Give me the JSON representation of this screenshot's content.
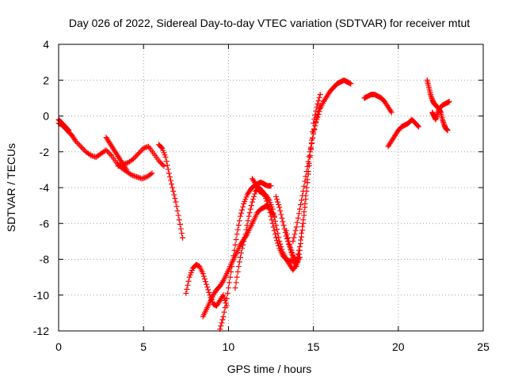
{
  "chart_data": {
    "type": "scatter",
    "title": "Day 026 of 2022, Sidereal Day-to-day VTEC variation (SDTVAR) for receiver mtut",
    "xlabel": "GPS time / hours",
    "ylabel": "SDTVAR / TECUs",
    "xlim": [
      0,
      25
    ],
    "ylim": [
      -12,
      4
    ],
    "xticks": [
      "0",
      "5",
      "10",
      "15",
      "20",
      "25"
    ],
    "yticks": [
      "-12",
      "-10",
      "-8",
      "-6",
      "-4",
      "-2",
      "0",
      "2",
      "4"
    ],
    "grid": true,
    "marker": "plus",
    "color": "#ff0000",
    "series": [
      {
        "x": [
          0.0,
          0.2,
          0.4,
          0.6,
          0.8,
          1.0,
          1.3,
          1.6,
          1.9,
          2.2,
          2.5,
          2.8,
          3.1,
          3.4,
          3.7,
          4.0,
          4.3,
          4.6,
          4.9,
          5.2,
          5.5
        ],
        "y": [
          -0.4,
          -0.5,
          -0.7,
          -0.9,
          -1.1,
          -1.4,
          -1.7,
          -2.0,
          -2.2,
          -2.3,
          -2.1,
          -1.9,
          -2.2,
          -2.6,
          -2.9,
          -3.1,
          -3.3,
          -3.4,
          -3.5,
          -3.4,
          -3.2
        ]
      },
      {
        "x": [
          0.0,
          0.2,
          0.4,
          0.6
        ],
        "y": [
          -0.2,
          -0.4,
          -0.6,
          -0.8
        ]
      },
      {
        "x": [
          2.8,
          3.0,
          3.2,
          3.4,
          3.6,
          3.8,
          4.0
        ],
        "y": [
          -1.2,
          -1.5,
          -1.8,
          -2.1,
          -2.4,
          -2.7,
          -3.0
        ]
      },
      {
        "x": [
          3.5,
          3.8,
          4.1,
          4.4,
          4.7,
          5.0,
          5.3,
          5.6,
          5.9,
          6.2
        ],
        "y": [
          -2.8,
          -2.7,
          -2.6,
          -2.4,
          -2.1,
          -1.8,
          -1.7,
          -2.1,
          -2.5,
          -2.8
        ]
      },
      {
        "x": [
          5.9,
          6.1,
          6.3,
          6.5,
          6.7,
          6.9,
          7.1,
          7.3
        ],
        "y": [
          -1.6,
          -1.8,
          -2.3,
          -3.2,
          -4.0,
          -4.8,
          -5.8,
          -6.8
        ]
      },
      {
        "x": [
          7.5,
          7.7,
          7.9,
          8.1,
          8.3,
          8.5,
          8.7,
          8.9,
          9.1,
          9.3,
          9.5,
          9.7,
          9.9
        ],
        "y": [
          -9.9,
          -9.0,
          -8.5,
          -8.3,
          -8.4,
          -8.8,
          -9.4,
          -10.0,
          -10.5,
          -10.6,
          -10.3,
          -10.0,
          -10.6
        ]
      },
      {
        "x": [
          8.5,
          8.7,
          8.9,
          9.1,
          9.3,
          9.5,
          9.7,
          9.9,
          10.1,
          10.3,
          10.5,
          10.7,
          10.9,
          11.1,
          11.3,
          11.5,
          11.7,
          11.9,
          12.1,
          12.3,
          12.5,
          12.7
        ],
        "y": [
          -11.2,
          -10.8,
          -10.4,
          -10.0,
          -9.7,
          -9.5,
          -9.2,
          -8.8,
          -8.4,
          -8.0,
          -7.6,
          -7.2,
          -6.9,
          -6.6,
          -6.2,
          -5.8,
          -5.4,
          -5.2,
          -5.1,
          -5.0,
          -5.3,
          -5.6
        ]
      },
      {
        "x": [
          9.5,
          9.7,
          9.9,
          10.1,
          10.3,
          10.5,
          10.7,
          10.9,
          11.1,
          11.3,
          11.5,
          11.7,
          11.9,
          12.1,
          12.3,
          12.5
        ],
        "y": [
          -11.9,
          -11.2,
          -10.2,
          -9.0,
          -7.8,
          -6.6,
          -5.6,
          -4.9,
          -4.4,
          -4.1,
          -3.9,
          -3.8,
          -3.7,
          -3.8,
          -3.9,
          -3.9
        ]
      },
      {
        "x": [
          10.4,
          10.6,
          10.8,
          11.0,
          11.2,
          11.4,
          11.6,
          11.8,
          12.0,
          12.2,
          12.4,
          12.6,
          12.8,
          13.0,
          13.2,
          13.4,
          13.6,
          13.8,
          14.0
        ],
        "y": [
          -9.6,
          -8.4,
          -7.4,
          -6.6,
          -5.6,
          -4.8,
          -4.2,
          -4.0,
          -4.2,
          -4.6,
          -5.2,
          -6.0,
          -6.8,
          -7.4,
          -7.8,
          -8.0,
          -8.1,
          -8.1,
          -8.0
        ]
      },
      {
        "x": [
          11.4,
          11.6,
          11.8,
          12.0,
          12.2,
          12.4,
          12.6,
          12.8,
          13.0,
          13.2,
          13.4,
          13.6,
          13.8,
          14.0,
          14.2
        ],
        "y": [
          -3.5,
          -3.8,
          -4.2,
          -4.3,
          -4.4,
          -4.7,
          -5.2,
          -6.1,
          -7.0,
          -7.6,
          -8.0,
          -8.3,
          -8.6,
          -8.3,
          -7.9
        ]
      },
      {
        "x": [
          12.8,
          13.0,
          13.2,
          13.4,
          13.6,
          13.8,
          14.0,
          14.2,
          14.4,
          14.6,
          14.8,
          15.0,
          15.2,
          15.4
        ],
        "y": [
          -4.5,
          -5.1,
          -5.9,
          -6.7,
          -7.3,
          -7.9,
          -8.4,
          -7.5,
          -6.0,
          -4.2,
          -2.3,
          -0.4,
          0.5,
          1.2
        ]
      },
      {
        "x": [
          13.4,
          13.6,
          13.8,
          14.0,
          14.2,
          14.4,
          14.6,
          14.8,
          15.0,
          15.2,
          15.4,
          15.6,
          15.8,
          16.0,
          16.2,
          16.4,
          16.6,
          16.8,
          17.0,
          17.2
        ],
        "y": [
          -6.4,
          -7.2,
          -7.8,
          -8.1,
          -7.3,
          -5.8,
          -4.0,
          -2.2,
          -0.9,
          -0.2,
          0.4,
          0.8,
          1.1,
          1.4,
          1.6,
          1.8,
          1.9,
          2.0,
          1.9,
          1.8
        ]
      },
      {
        "x": [
          13.8,
          14.0,
          14.2,
          14.4,
          14.6,
          14.8,
          15.0,
          15.2,
          15.4
        ],
        "y": [
          -7.0,
          -6.2,
          -5.2,
          -4.2,
          -3.1,
          -2.0,
          -1.0,
          -0.1,
          0.6
        ]
      },
      {
        "x": [
          18.0,
          18.2,
          18.4,
          18.6,
          18.8,
          19.0,
          19.2,
          19.4,
          19.6
        ],
        "y": [
          1.0,
          1.1,
          1.2,
          1.2,
          1.1,
          1.0,
          0.8,
          0.5,
          0.2
        ]
      },
      {
        "x": [
          19.4,
          19.6,
          19.8,
          20.0,
          20.2,
          20.4,
          20.6,
          20.8,
          21.0,
          21.2
        ],
        "y": [
          -1.7,
          -1.4,
          -1.1,
          -0.8,
          -0.6,
          -0.5,
          -0.4,
          -0.2,
          -0.4,
          -0.6
        ]
      },
      {
        "x": [
          21.7,
          21.8,
          21.9,
          22.0,
          22.1,
          22.2,
          22.3,
          22.4,
          22.6,
          22.8,
          23.0
        ],
        "y": [
          2.0,
          1.6,
          1.2,
          0.9,
          0.7,
          0.6,
          0.5,
          0.4,
          0.6,
          0.7,
          0.8
        ]
      },
      {
        "x": [
          22.0,
          22.1,
          22.2,
          22.3,
          22.4,
          22.5,
          22.6,
          22.7,
          22.8,
          22.9
        ],
        "y": [
          0.2,
          0.0,
          -0.2,
          0.1,
          0.4,
          0.2,
          -0.2,
          -0.5,
          -0.7,
          -0.8
        ]
      }
    ]
  }
}
